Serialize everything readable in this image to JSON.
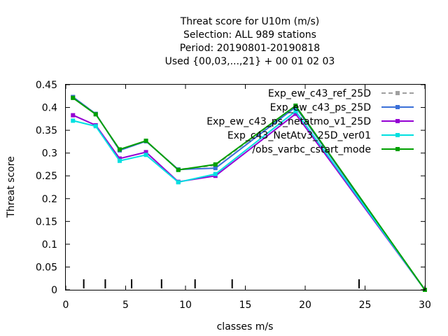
{
  "chart_data": {
    "type": "line",
    "title_lines": [
      "Threat score  for U10m (m/s)",
      "Selection: ALL    989 stations",
      "Period: 20190801-20190818",
      "Used {00,03,...,21} + 00 01 02 03"
    ],
    "xlabel": "classes m/s",
    "ylabel": "Threat score",
    "xlim": [
      0,
      30
    ],
    "ylim": [
      0,
      0.45
    ],
    "xticks": [
      0,
      5,
      10,
      15,
      20,
      25,
      30
    ],
    "yticks": [
      0,
      0.05,
      0.1,
      0.15,
      0.2,
      0.25,
      0.3,
      0.35,
      0.4,
      0.45
    ],
    "xtick_labels": [
      "0",
      "5",
      "10",
      "15",
      "20",
      "25",
      "30"
    ],
    "ytick_labels": [
      "0",
      "0.05",
      "0.1",
      "0.15",
      "0.2",
      "0.25",
      "0.3",
      "0.35",
      "0.4",
      "0.45"
    ],
    "class_markers": [
      1.5,
      3.3,
      5.5,
      8.0,
      10.8,
      13.9,
      24.5
    ],
    "grid": false,
    "legend_position": "top-right",
    "series": [
      {
        "name": "Exp_ew_c43_ref_25D",
        "color": "#a0a0a0",
        "dashed": true,
        "x": [
          0.6,
          2.5,
          4.5,
          6.7,
          9.4,
          12.5,
          19.2,
          30
        ],
        "y": [
          0.423,
          0.386,
          0.306,
          0.326,
          0.264,
          0.273,
          0.403,
          0.0
        ]
      },
      {
        "name": "Exp_ew_c43_ps_25D",
        "color": "#3a6fd8",
        "dashed": false,
        "x": [
          0.6,
          2.5,
          4.5,
          6.7,
          9.4,
          12.5,
          19.2,
          30
        ],
        "y": [
          0.423,
          0.386,
          0.306,
          0.326,
          0.264,
          0.267,
          0.401,
          0.0
        ]
      },
      {
        "name": "Exp_ew_c43_ps_netatmo_v1_25D",
        "color": "#9400d3",
        "dashed": false,
        "x": [
          0.6,
          2.5,
          4.5,
          6.7,
          9.4,
          12.5,
          19.2,
          30
        ],
        "y": [
          0.383,
          0.361,
          0.288,
          0.302,
          0.237,
          0.25,
          0.386,
          0.0
        ]
      },
      {
        "name": "Exp_c43_NetAtv3_25D_ver01",
        "color": "#00e0e0",
        "dashed": false,
        "x": [
          0.6,
          2.5,
          4.5,
          6.7,
          9.4,
          12.5,
          19.2,
          30
        ],
        "y": [
          0.371,
          0.359,
          0.283,
          0.296,
          0.236,
          0.254,
          0.392,
          0.0
        ]
      },
      {
        "name": "/obs_varbc_cstart_mode",
        "color": "#00a000",
        "dashed": false,
        "x": [
          0.6,
          2.5,
          4.5,
          6.7,
          9.4,
          12.5,
          19.2,
          30
        ],
        "y": [
          0.421,
          0.385,
          0.308,
          0.327,
          0.263,
          0.275,
          0.404,
          0.0
        ]
      }
    ]
  }
}
